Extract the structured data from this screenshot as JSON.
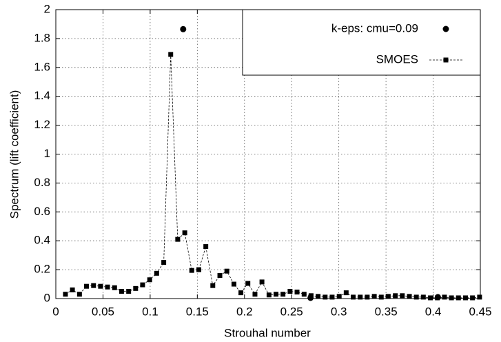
{
  "chart_data": {
    "type": "scatter",
    "x_label": "Strouhal number",
    "y_label": "Spectrum (lift coefficient)",
    "xlim": [
      0,
      0.45
    ],
    "xticks": [
      0,
      0.05,
      0.1,
      0.15,
      0.2,
      0.25,
      0.3,
      0.35,
      0.4,
      0.45
    ],
    "ylim": [
      0,
      2
    ],
    "yticks": [
      0,
      0.2,
      0.4,
      0.6,
      0.8,
      1,
      1.2,
      1.4,
      1.6,
      1.8,
      2
    ],
    "grid": true,
    "legend": "upper right",
    "series": [
      {
        "name": "k-eps: cmu=0.09",
        "color": "#000000",
        "marker": "circle",
        "line": false,
        "x": [
          0.135,
          0.27,
          0.405
        ],
        "values": [
          1.865,
          0.005,
          0.01
        ]
      },
      {
        "name": "SMOES",
        "color": "#000000",
        "marker": "square",
        "line": true,
        "x": [
          0.0102,
          0.0176,
          0.0251,
          0.0325,
          0.04,
          0.0474,
          0.0548,
          0.0623,
          0.0697,
          0.0772,
          0.0846,
          0.092,
          0.0995,
          0.1069,
          0.1144,
          0.1218,
          0.1292,
          0.1367,
          0.1441,
          0.1516,
          0.159,
          0.1664,
          0.1739,
          0.1813,
          0.1888,
          0.1962,
          0.2036,
          0.2111,
          0.2185,
          0.226,
          0.2334,
          0.2408,
          0.2483,
          0.2557,
          0.2632,
          0.2706,
          0.278,
          0.2855,
          0.2929,
          0.3004,
          0.3078,
          0.3152,
          0.3227,
          0.3301,
          0.3376,
          0.345,
          0.3524,
          0.3599,
          0.3673,
          0.3748,
          0.3822,
          0.3896,
          0.3971,
          0.4045,
          0.412,
          0.4194,
          0.4268,
          0.4343,
          0.4417,
          0.4492
        ],
        "values": [
          0.03,
          0.06,
          0.03,
          0.085,
          0.09,
          0.085,
          0.08,
          0.075,
          0.05,
          0.05,
          0.07,
          0.095,
          0.13,
          0.175,
          0.25,
          1.69,
          0.41,
          0.455,
          0.195,
          0.2,
          0.36,
          0.09,
          0.16,
          0.19,
          0.1,
          0.04,
          0.105,
          0.03,
          0.115,
          0.025,
          0.03,
          0.03,
          0.05,
          0.045,
          0.03,
          0.02,
          0.015,
          0.01,
          0.01,
          0.015,
          0.04,
          0.01,
          0.01,
          0.01,
          0.015,
          0.01,
          0.015,
          0.02,
          0.02,
          0.015,
          0.01,
          0.01,
          0.005,
          0.005,
          0.01,
          0.005,
          0.005,
          0.005,
          0.005,
          0.01
        ]
      }
    ]
  }
}
